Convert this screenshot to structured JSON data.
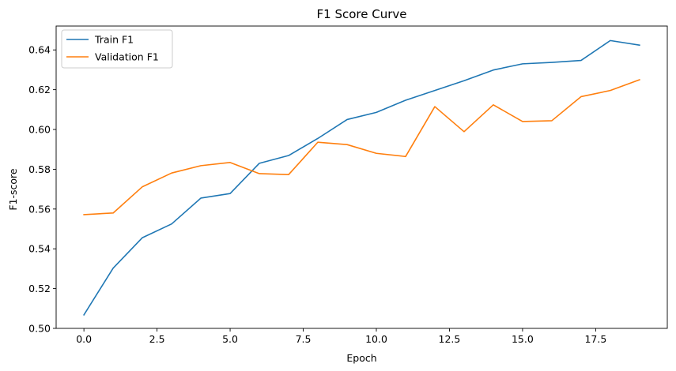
{
  "chart_data": {
    "type": "line",
    "title": "F1 Score Curve",
    "xlabel": "Epoch",
    "ylabel": "F1-score",
    "xlim": [
      -0.95,
      19.95
    ],
    "ylim": [
      0.5,
      0.652
    ],
    "xticks": [
      0.0,
      2.5,
      5.0,
      7.5,
      10.0,
      12.5,
      15.0,
      17.5
    ],
    "xtick_labels": [
      "0.0",
      "2.5",
      "5.0",
      "7.5",
      "10.0",
      "12.5",
      "15.0",
      "17.5"
    ],
    "yticks": [
      0.5,
      0.52,
      0.54,
      0.56,
      0.58,
      0.6,
      0.62,
      0.64
    ],
    "ytick_labels": [
      "0.50",
      "0.52",
      "0.54",
      "0.56",
      "0.58",
      "0.60",
      "0.62",
      "0.64"
    ],
    "grid": false,
    "legend_position": "top-left",
    "x": [
      0,
      1,
      2,
      3,
      4,
      5,
      6,
      7,
      8,
      9,
      10,
      11,
      12,
      13,
      14,
      15,
      16,
      17,
      18,
      19
    ],
    "series": [
      {
        "name": "Train F1",
        "color": "#1f77b4",
        "values": [
          0.5068,
          0.5303,
          0.5456,
          0.5525,
          0.5655,
          0.5678,
          0.583,
          0.5869,
          0.5955,
          0.605,
          0.6086,
          0.6147,
          0.6196,
          0.6245,
          0.6299,
          0.633,
          0.6337,
          0.6347,
          0.6447,
          0.6424
        ]
      },
      {
        "name": "Validation F1",
        "color": "#ff7f0e",
        "values": [
          0.5572,
          0.558,
          0.5712,
          0.5781,
          0.5818,
          0.5834,
          0.5778,
          0.5773,
          0.5936,
          0.5924,
          0.588,
          0.5864,
          0.6115,
          0.5989,
          0.6124,
          0.604,
          0.6044,
          0.6165,
          0.6196,
          0.625
        ]
      }
    ]
  }
}
